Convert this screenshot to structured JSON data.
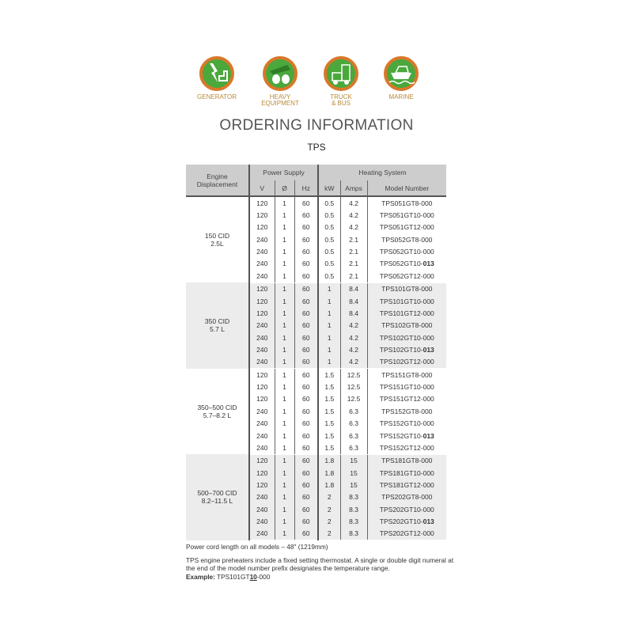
{
  "icons": [
    {
      "name": "generator",
      "label": [
        "GENERATOR"
      ]
    },
    {
      "name": "heavy-equipment",
      "label": [
        "HEAVY",
        "EQUIPMENT"
      ]
    },
    {
      "name": "truck-bus",
      "label": [
        "TRUCK",
        "& BUS"
      ]
    },
    {
      "name": "marine",
      "label": [
        "MARINE"
      ]
    }
  ],
  "colors": {
    "ring": "#d9782a",
    "fill": "#4aa83c",
    "label": "#b98a3a",
    "header_bg": "#cdcdcd",
    "shade": "#ececec"
  },
  "title": "ORDERING INFORMATION",
  "subtitle": "TPS",
  "table": {
    "headers": {
      "engine": [
        "Engine",
        "Displacement"
      ],
      "power_supply": "Power Supply",
      "heating_system": "Heating System",
      "cols": [
        "V",
        "Ø",
        "Hz",
        "kW",
        "Amps",
        "Model Number"
      ]
    },
    "groups": [
      {
        "displacement": [
          "150 CID",
          "2.5L"
        ],
        "rows": [
          [
            "120",
            "1",
            "60",
            "0.5",
            "4.2",
            "TPS051GT8-000"
          ],
          [
            "120",
            "1",
            "60",
            "0.5",
            "4.2",
            "TPS051GT10-000"
          ],
          [
            "120",
            "1",
            "60",
            "0.5",
            "4.2",
            "TPS051GT12-000"
          ],
          [
            "240",
            "1",
            "60",
            "0.5",
            "2.1",
            "TPS052GT8-000"
          ],
          [
            "240",
            "1",
            "60",
            "0.5",
            "2.1",
            "TPS052GT10-000"
          ],
          [
            "240",
            "1",
            "60",
            "0.5",
            "2.1",
            "TPS052GT10-013"
          ],
          [
            "240",
            "1",
            "60",
            "0.5",
            "2.1",
            "TPS052GT12-000"
          ]
        ]
      },
      {
        "displacement": [
          "350 CID",
          "5.7 L"
        ],
        "rows": [
          [
            "120",
            "1",
            "60",
            "1",
            "8.4",
            "TPS101GT8-000"
          ],
          [
            "120",
            "1",
            "60",
            "1",
            "8.4",
            "TPS101GT10-000"
          ],
          [
            "120",
            "1",
            "60",
            "1",
            "8.4",
            "TPS101GT12-000"
          ],
          [
            "240",
            "1",
            "60",
            "1",
            "4.2",
            "TPS102GT8-000"
          ],
          [
            "240",
            "1",
            "60",
            "1",
            "4.2",
            "TPS102GT10-000"
          ],
          [
            "240",
            "1",
            "60",
            "1",
            "4.2",
            "TPS102GT10-013"
          ],
          [
            "240",
            "1",
            "60",
            "1",
            "4.2",
            "TPS102GT12-000"
          ]
        ]
      },
      {
        "displacement": [
          "350–500 CID",
          "5.7–8.2 L"
        ],
        "rows": [
          [
            "120",
            "1",
            "60",
            "1.5",
            "12.5",
            "TPS151GT8-000"
          ],
          [
            "120",
            "1",
            "60",
            "1.5",
            "12.5",
            "TPS151GT10-000"
          ],
          [
            "120",
            "1",
            "60",
            "1.5",
            "12.5",
            "TPS151GT12-000"
          ],
          [
            "240",
            "1",
            "60",
            "1.5",
            "6.3",
            "TPS152GT8-000"
          ],
          [
            "240",
            "1",
            "60",
            "1.5",
            "6.3",
            "TPS152GT10-000"
          ],
          [
            "240",
            "1",
            "60",
            "1.5",
            "6.3",
            "TPS152GT10-013"
          ],
          [
            "240",
            "1",
            "60",
            "1.5",
            "6.3",
            "TPS152GT12-000"
          ]
        ]
      },
      {
        "displacement": [
          "500–700 CID",
          "8.2–11.5 L"
        ],
        "rows": [
          [
            "120",
            "1",
            "60",
            "1.8",
            "15",
            "TPS181GT8-000"
          ],
          [
            "120",
            "1",
            "60",
            "1.8",
            "15",
            "TPS181GT10-000"
          ],
          [
            "120",
            "1",
            "60",
            "1.8",
            "15",
            "TPS181GT12-000"
          ],
          [
            "240",
            "1",
            "60",
            "2",
            "8.3",
            "TPS202GT8-000"
          ],
          [
            "240",
            "1",
            "60",
            "2",
            "8.3",
            "TPS202GT10-000"
          ],
          [
            "240",
            "1",
            "60",
            "2",
            "8.3",
            "TPS202GT10-013"
          ],
          [
            "240",
            "1",
            "60",
            "2",
            "8.3",
            "TPS202GT12-000"
          ]
        ]
      }
    ]
  },
  "notes": {
    "cord": "Power cord length on all models – 48\" (1219mm)",
    "thermostat": "TPS engine preheaters include a fixed setting thermostat. A single or double digit numeral at the end of the model number prefix designates the temperature range.",
    "example_label": "Example:",
    "example_prefix": "TPS101GT",
    "example_highlight": "10",
    "example_suffix": "-000"
  }
}
